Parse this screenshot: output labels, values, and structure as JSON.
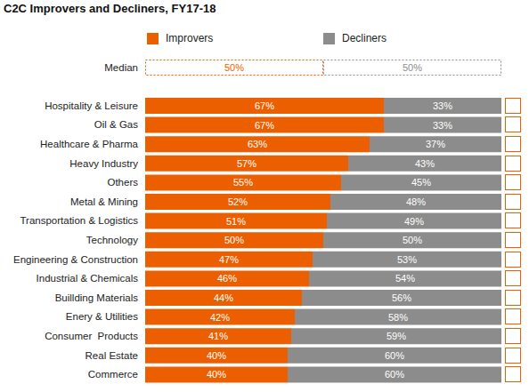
{
  "chart_data": {
    "type": "bar",
    "title": "C2C Improvers and Decliners, FY17-18",
    "orientation": "horizontal",
    "stacked": true,
    "data_labels": true,
    "tick_labels": "y",
    "legend": "top",
    "categories": [
      "Median",
      "Hospitality & Leisure",
      "Oil & Gas",
      "Healthcare & Pharma",
      "Heavy Industry",
      "Others",
      "Metal & Mining",
      "Transportation & Logistics",
      "Technology",
      "Engineering & Construction",
      "Industrial & Chemicals",
      "Buillding Materials",
      "Enery & Utilities",
      "Consumer  Products",
      "Real Estate",
      "Commerce"
    ],
    "series": [
      {
        "name": "Improvers",
        "color": "#ec5f00",
        "values": [
          50,
          67,
          67,
          63,
          57,
          55,
          52,
          51,
          50,
          47,
          46,
          44,
          42,
          41,
          40,
          40
        ],
        "value_labels": [
          "50%",
          "67%",
          "67%",
          "63%",
          "57%",
          "55%",
          "52%",
          "51%",
          "50%",
          "47%",
          "46%",
          "44%",
          "42%",
          "41%",
          "40%",
          "40%"
        ]
      },
      {
        "name": "Decliners",
        "color": "#8c8c8c",
        "values": [
          50,
          33,
          33,
          37,
          43,
          45,
          48,
          49,
          50,
          53,
          54,
          56,
          58,
          59,
          60,
          60
        ],
        "value_labels": [
          "50%",
          "33%",
          "33%",
          "37%",
          "43%",
          "45%",
          "48%",
          "49%",
          "50%",
          "53%",
          "54%",
          "56%",
          "58%",
          "59%",
          "60%",
          "60%"
        ]
      }
    ],
    "xlim": [
      0,
      100
    ],
    "xticks": [
      0,
      100
    ]
  }
}
